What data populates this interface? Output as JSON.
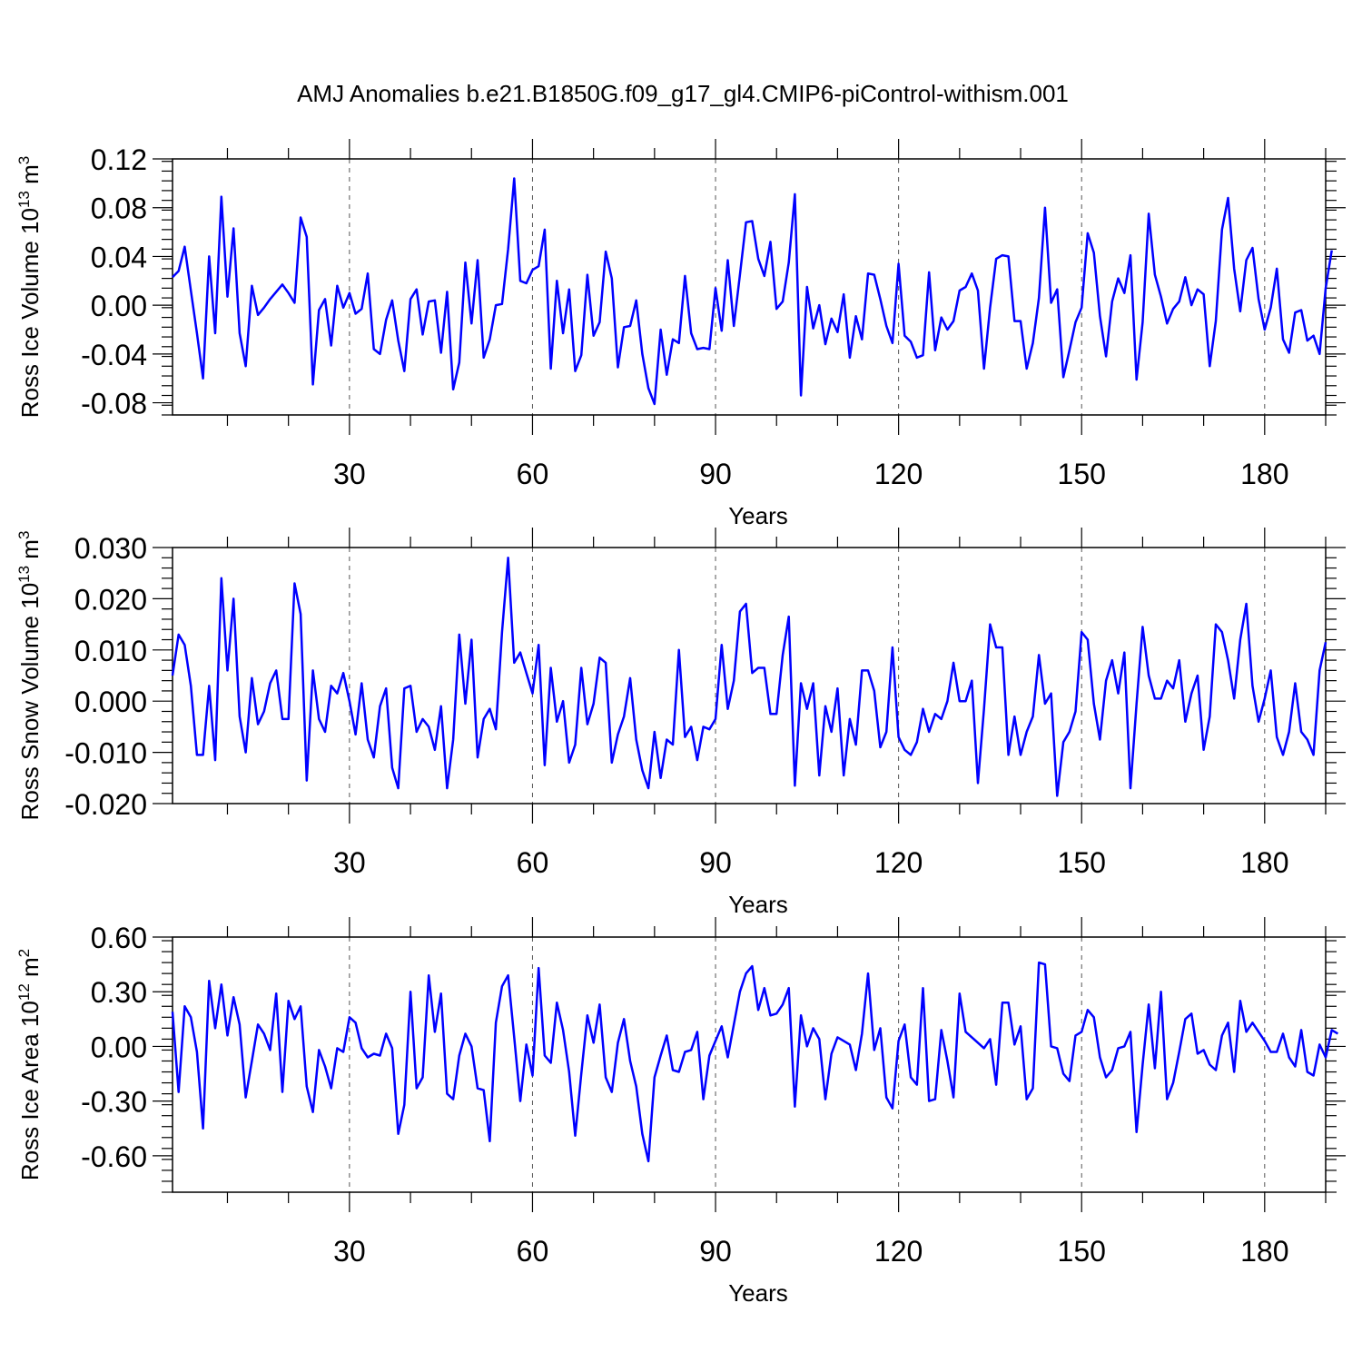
{
  "title": "AMJ Anomalies b.e21.B1850G.f09_g17_gl4.CMIP6-piControl-withism.001",
  "colors": {
    "series": "#0000ff",
    "axis": "#000000",
    "grid": "#555555",
    "background": "#ffffff"
  },
  "chart_data": [
    {
      "type": "line",
      "xlabel": "Years",
      "ylabel": {
        "prefix": "Ross Ice Volume 10",
        "exp": "13",
        "unit": " m",
        "unit_exp": "3"
      },
      "xlim": [
        1,
        190
      ],
      "ylim": [
        -0.09,
        0.12
      ],
      "x_ticks": [
        30,
        60,
        90,
        120,
        150,
        180
      ],
      "x_tick_labels": [
        "30",
        "60",
        "90",
        "120",
        "150",
        "180"
      ],
      "y_ticks": [
        -0.08,
        -0.04,
        0.0,
        0.04,
        0.08,
        0.12
      ],
      "y_tick_labels": [
        "-0.08",
        "-0.04",
        "0.00",
        "0.04",
        "0.08",
        "0.12"
      ],
      "grid": "vertical dashed at major x ticks",
      "series": [
        {
          "values": [
            0.023,
            0.028,
            0.048,
            0.012,
            -0.023,
            -0.06,
            0.04,
            -0.023,
            0.089,
            0.007,
            0.063,
            -0.023,
            -0.05,
            0.016,
            -0.008,
            -0.002,
            0.005,
            0.011,
            0.017,
            0.01,
            0.002,
            0.072,
            0.056,
            -0.065,
            -0.004,
            0.005,
            -0.033,
            0.016,
            -0.002,
            0.01,
            -0.007,
            -0.003,
            0.026,
            -0.036,
            -0.04,
            -0.012,
            0.004,
            -0.029,
            -0.054,
            0.005,
            0.013,
            -0.024,
            0.003,
            0.004,
            -0.039,
            0.011,
            -0.069,
            -0.047,
            0.035,
            -0.015,
            0.037,
            -0.043,
            -0.028,
            0.0,
            0.001,
            0.046,
            0.104,
            0.02,
            0.018,
            0.029,
            0.032,
            0.062,
            -0.052,
            0.02,
            -0.023,
            0.013,
            -0.054,
            -0.041,
            0.025,
            -0.025,
            -0.014,
            0.044,
            0.022,
            -0.051,
            -0.018,
            -0.017,
            0.004,
            -0.04,
            -0.068,
            -0.081,
            -0.02,
            -0.057,
            -0.028,
            -0.031,
            0.024,
            -0.023,
            -0.036,
            -0.035,
            -0.036,
            0.014,
            -0.021,
            0.037,
            -0.017,
            0.025,
            0.068,
            0.069,
            0.038,
            0.024,
            0.052,
            -0.003,
            0.003,
            0.035,
            0.091,
            -0.074,
            0.015,
            -0.019,
            0.0,
            -0.032,
            -0.011,
            -0.022,
            0.009,
            -0.043,
            -0.009,
            -0.028,
            0.026,
            0.025,
            0.005,
            -0.017,
            -0.031,
            0.034,
            -0.025,
            -0.03,
            -0.043,
            -0.041,
            0.027,
            -0.037,
            -0.01,
            -0.02,
            -0.013,
            0.012,
            0.015,
            0.026,
            0.012,
            -0.052,
            -0.002,
            0.038,
            0.041,
            0.04,
            -0.013,
            -0.013,
            -0.052,
            -0.031,
            0.006,
            0.08,
            0.002,
            0.013,
            -0.059,
            -0.037,
            -0.014,
            -0.002,
            0.059,
            0.043,
            -0.009,
            -0.042,
            0.003,
            0.022,
            0.01,
            0.041,
            -0.061,
            -0.014,
            0.075,
            0.025,
            0.007,
            -0.015,
            -0.003,
            0.003,
            0.023,
            0.0,
            0.013,
            0.009,
            -0.05,
            -0.013,
            0.062,
            0.088,
            0.03,
            -0.005,
            0.037,
            0.047,
            0.005,
            -0.02,
            -0.002,
            0.03,
            -0.028,
            -0.039,
            -0.006,
            -0.004,
            -0.029,
            -0.025,
            -0.04,
            0.014,
            0.045
          ]
        }
      ]
    },
    {
      "type": "line",
      "xlabel": "Years",
      "ylabel": {
        "prefix": "Ross Snow Volume 10",
        "exp": "13",
        "unit": " m",
        "unit_exp": "3"
      },
      "xlim": [
        1,
        190
      ],
      "ylim": [
        -0.02,
        0.03
      ],
      "x_ticks": [
        30,
        60,
        90,
        120,
        150,
        180
      ],
      "x_tick_labels": [
        "30",
        "60",
        "90",
        "120",
        "150",
        "180"
      ],
      "y_ticks": [
        -0.02,
        -0.01,
        0.0,
        0.01,
        0.02,
        0.03
      ],
      "y_tick_labels": [
        "-0.020",
        "-0.010",
        "0.000",
        "0.010",
        "0.020",
        "0.030"
      ],
      "grid": "vertical dashed at major x ticks",
      "series": [
        {
          "values": [
            0.005,
            0.013,
            0.011,
            0.003,
            -0.0105,
            -0.0105,
            0.003,
            -0.0115,
            0.024,
            0.006,
            0.02,
            -0.003,
            -0.01,
            0.0045,
            -0.0045,
            -0.002,
            0.0035,
            0.006,
            -0.0035,
            -0.0035,
            0.023,
            0.017,
            -0.0155,
            0.006,
            -0.0035,
            -0.006,
            0.003,
            0.0015,
            0.0055,
            0.0,
            -0.0065,
            0.0035,
            -0.0075,
            -0.011,
            -0.001,
            0.0025,
            -0.013,
            -0.017,
            0.0025,
            0.003,
            -0.006,
            -0.0035,
            -0.005,
            -0.0095,
            -0.001,
            -0.017,
            -0.0075,
            0.013,
            -0.0005,
            0.012,
            -0.011,
            -0.0035,
            -0.0015,
            -0.0055,
            0.0135,
            0.028,
            0.0075,
            0.0095,
            0.0055,
            0.0015,
            0.011,
            -0.0125,
            0.0065,
            -0.004,
            0.0,
            -0.012,
            -0.0085,
            0.0065,
            -0.0045,
            -0.0005,
            0.0085,
            0.0075,
            -0.012,
            -0.0065,
            -0.003,
            0.0045,
            -0.0075,
            -0.0135,
            -0.017,
            -0.006,
            -0.015,
            -0.0075,
            -0.0085,
            0.01,
            -0.007,
            -0.005,
            -0.0115,
            -0.005,
            -0.0055,
            -0.0035,
            0.011,
            -0.0015,
            0.004,
            0.0175,
            0.019,
            0.0055,
            0.0065,
            0.0065,
            -0.0025,
            -0.0025,
            0.009,
            0.0165,
            -0.0165,
            0.0035,
            -0.0015,
            0.0035,
            -0.0145,
            -0.001,
            -0.006,
            0.0025,
            -0.0145,
            -0.0035,
            -0.0085,
            0.006,
            0.006,
            0.002,
            -0.009,
            -0.006,
            0.0105,
            -0.007,
            -0.0095,
            -0.0105,
            -0.008,
            -0.0015,
            -0.006,
            -0.0025,
            -0.0035,
            0.0,
            0.0075,
            0.0,
            0.0,
            0.004,
            -0.016,
            -0.0015,
            0.015,
            0.0105,
            0.0105,
            -0.0105,
            -0.003,
            -0.0105,
            -0.006,
            -0.003,
            0.009,
            -0.0005,
            0.0015,
            -0.0185,
            -0.008,
            -0.006,
            -0.002,
            0.0135,
            0.012,
            -0.0005,
            -0.0075,
            0.004,
            0.008,
            0.0015,
            0.0095,
            -0.017,
            -0.0005,
            0.0145,
            0.005,
            0.0005,
            0.0005,
            0.004,
            0.0025,
            0.008,
            -0.004,
            0.0015,
            0.005,
            -0.0095,
            -0.003,
            0.015,
            0.0135,
            0.008,
            0.0005,
            0.012,
            0.019,
            0.003,
            -0.004,
            0.0005,
            0.006,
            -0.007,
            -0.0105,
            -0.006,
            0.0035,
            -0.006,
            -0.0075,
            -0.0105,
            0.006,
            0.0115
          ]
        }
      ]
    },
    {
      "type": "line",
      "xlabel": "Years",
      "ylabel": {
        "prefix": "Ross Ice Area 10",
        "exp": "12",
        "unit": " m",
        "unit_exp": "2"
      },
      "xlim": [
        1,
        190
      ],
      "ylim": [
        -0.8,
        0.6
      ],
      "x_ticks": [
        30,
        60,
        90,
        120,
        150,
        180
      ],
      "x_tick_labels": [
        "30",
        "60",
        "90",
        "120",
        "150",
        "180"
      ],
      "y_ticks": [
        -0.6,
        -0.3,
        0.0,
        0.3,
        0.6
      ],
      "y_tick_labels": [
        "-0.60",
        "-0.30",
        "0.00",
        "0.30",
        "0.60"
      ],
      "grid": "vertical dashed at major x ticks",
      "series": [
        {
          "values": [
            0.19,
            -0.25,
            0.22,
            0.16,
            -0.03,
            -0.45,
            0.36,
            0.1,
            0.34,
            0.06,
            0.27,
            0.12,
            -0.28,
            -0.08,
            0.12,
            0.07,
            -0.02,
            0.29,
            -0.25,
            0.25,
            0.15,
            0.22,
            -0.22,
            -0.36,
            -0.02,
            -0.11,
            -0.23,
            -0.01,
            -0.03,
            0.16,
            0.13,
            -0.01,
            -0.06,
            -0.04,
            -0.05,
            0.07,
            -0.01,
            -0.48,
            -0.32,
            0.3,
            -0.23,
            -0.17,
            0.39,
            0.08,
            0.29,
            -0.26,
            -0.29,
            -0.05,
            0.07,
            0.0,
            -0.23,
            -0.24,
            -0.52,
            0.13,
            0.33,
            0.39,
            0.05,
            -0.3,
            0.01,
            -0.16,
            0.43,
            -0.05,
            -0.09,
            0.24,
            0.09,
            -0.14,
            -0.49,
            -0.15,
            0.17,
            0.02,
            0.23,
            -0.17,
            -0.25,
            0.02,
            0.15,
            -0.08,
            -0.22,
            -0.48,
            -0.63,
            -0.17,
            -0.05,
            0.06,
            -0.13,
            -0.14,
            -0.03,
            -0.02,
            0.08,
            -0.29,
            -0.05,
            0.03,
            0.11,
            -0.06,
            0.12,
            0.3,
            0.4,
            0.44,
            0.2,
            0.32,
            0.17,
            0.18,
            0.23,
            0.32,
            -0.33,
            0.17,
            0.0,
            0.1,
            0.04,
            -0.29,
            -0.04,
            0.05,
            0.03,
            0.01,
            -0.13,
            0.07,
            0.4,
            -0.02,
            0.1,
            -0.28,
            -0.34,
            0.03,
            0.12,
            -0.17,
            -0.21,
            0.32,
            -0.3,
            -0.29,
            0.09,
            -0.08,
            -0.28,
            0.29,
            0.08,
            0.05,
            0.02,
            -0.01,
            0.04,
            -0.21,
            0.24,
            0.24,
            0.01,
            0.11,
            -0.29,
            -0.23,
            0.46,
            0.45,
            0.0,
            -0.01,
            -0.15,
            -0.19,
            0.06,
            0.08,
            0.2,
            0.16,
            -0.06,
            -0.17,
            -0.13,
            -0.01,
            0.0,
            0.08,
            -0.47,
            -0.1,
            0.23,
            -0.12,
            0.3,
            -0.29,
            -0.2,
            -0.03,
            0.15,
            0.18,
            -0.04,
            -0.02,
            -0.1,
            -0.13,
            0.06,
            0.13,
            -0.14,
            0.25,
            0.08,
            0.13,
            0.08,
            0.03,
            -0.03,
            -0.03,
            0.07,
            -0.06,
            -0.11,
            0.09,
            -0.14,
            -0.16,
            0.01,
            -0.06,
            0.09,
            0.07
          ]
        }
      ]
    }
  ]
}
